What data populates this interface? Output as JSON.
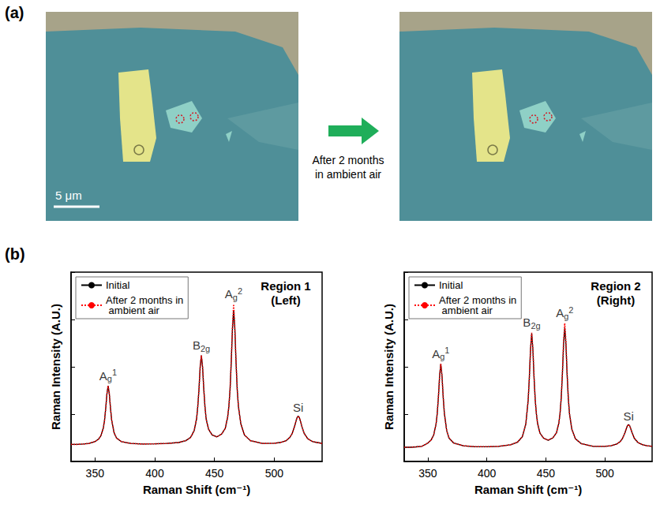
{
  "panel_a": {
    "letter": "(a)",
    "scale_bar": "5 μm",
    "arrow_text": [
      "After 2 months",
      "in ambient air"
    ]
  },
  "panel_b": {
    "letter": "(b)"
  },
  "chart_data": [
    {
      "type": "line",
      "title": [
        "Region 1",
        "(Left)"
      ],
      "x_label": "Raman Shift (cm⁻¹)",
      "y_label": "Raman Intensity (A.U.)",
      "x": [
        330,
        335,
        340,
        345,
        350,
        353,
        355,
        357,
        358,
        359,
        360,
        361,
        362,
        363,
        364,
        366,
        368,
        372,
        380,
        390,
        400,
        410,
        420,
        426,
        430,
        433,
        435,
        436,
        437,
        438,
        439,
        440,
        441,
        442,
        443,
        445,
        448,
        452,
        456,
        459,
        461,
        462,
        463,
        464,
        465,
        466,
        467,
        468,
        469,
        470,
        472,
        475,
        480,
        490,
        500,
        505,
        510,
        513,
        515,
        517,
        518,
        519,
        520,
        521,
        522,
        523,
        525,
        528,
        532,
        536,
        540
      ],
      "series": [
        {
          "name": "Initial",
          "color": "#000000",
          "line_style": "solid",
          "values": [
            0.09,
            0.09,
            0.092,
            0.095,
            0.105,
            0.118,
            0.136,
            0.177,
            0.217,
            0.28,
            0.357,
            0.4,
            0.357,
            0.28,
            0.217,
            0.152,
            0.124,
            0.105,
            0.095,
            0.092,
            0.093,
            0.095,
            0.1,
            0.11,
            0.127,
            0.163,
            0.225,
            0.29,
            0.38,
            0.5,
            0.56,
            0.5,
            0.385,
            0.29,
            0.225,
            0.17,
            0.14,
            0.13,
            0.145,
            0.175,
            0.235,
            0.29,
            0.38,
            0.525,
            0.7,
            0.8,
            0.7,
            0.525,
            0.38,
            0.29,
            0.2,
            0.14,
            0.11,
            0.095,
            0.096,
            0.1,
            0.11,
            0.127,
            0.148,
            0.186,
            0.21,
            0.231,
            0.24,
            0.231,
            0.21,
            0.186,
            0.148,
            0.12,
            0.105,
            0.1,
            0.095
          ]
        },
        {
          "name": "After 2 months in ambient air",
          "color": "#ff0000",
          "line_style": "dotted",
          "values": [
            0.09,
            0.09,
            0.092,
            0.095,
            0.105,
            0.118,
            0.136,
            0.177,
            0.217,
            0.28,
            0.357,
            0.4,
            0.357,
            0.28,
            0.217,
            0.152,
            0.124,
            0.105,
            0.095,
            0.092,
            0.093,
            0.095,
            0.1,
            0.11,
            0.127,
            0.163,
            0.225,
            0.29,
            0.38,
            0.5,
            0.56,
            0.5,
            0.385,
            0.29,
            0.225,
            0.17,
            0.14,
            0.13,
            0.145,
            0.175,
            0.235,
            0.29,
            0.38,
            0.53,
            0.71,
            0.83,
            0.71,
            0.53,
            0.38,
            0.29,
            0.2,
            0.14,
            0.11,
            0.095,
            0.096,
            0.1,
            0.11,
            0.127,
            0.148,
            0.186,
            0.21,
            0.231,
            0.24,
            0.231,
            0.21,
            0.186,
            0.148,
            0.12,
            0.105,
            0.1,
            0.095
          ]
        }
      ],
      "annotations": [
        {
          "x": 361,
          "text": "A",
          "sub": "g",
          "sup": "1"
        },
        {
          "x": 439,
          "text": "B",
          "sub": "2g"
        },
        {
          "x": 466,
          "text": "A",
          "sub": "g",
          "sup": "2"
        },
        {
          "x": 520,
          "text": "Si"
        }
      ],
      "xlim": [
        330,
        540
      ],
      "xticks": [
        350,
        400,
        450,
        500
      ],
      "ylim": [
        0,
        1
      ],
      "yticks": [
        0,
        0.25,
        0.5,
        0.75,
        1
      ],
      "tick_labels": "x",
      "legend": "upper left",
      "grid": false
    },
    {
      "type": "line",
      "title": [
        "Region 2",
        "(Right)"
      ],
      "x_label": "Raman Shift (cm⁻¹)",
      "y_label": "Raman Intensity (A.U.)",
      "x": [
        330,
        335,
        340,
        345,
        350,
        353,
        355,
        357,
        358,
        359,
        360,
        361,
        362,
        363,
        364,
        366,
        368,
        372,
        380,
        390,
        400,
        410,
        420,
        426,
        430,
        433,
        435,
        436,
        437,
        438,
        439,
        440,
        441,
        442,
        443,
        445,
        448,
        452,
        456,
        459,
        461,
        462,
        463,
        464,
        465,
        466,
        467,
        468,
        469,
        470,
        472,
        475,
        480,
        490,
        500,
        505,
        510,
        513,
        515,
        517,
        518,
        519,
        520,
        521,
        522,
        523,
        525,
        528,
        532,
        536,
        540
      ],
      "series": [
        {
          "name": "Initial",
          "color": "#000000",
          "line_style": "solid",
          "values": [
            0.075,
            0.075,
            0.077,
            0.08,
            0.097,
            0.115,
            0.141,
            0.198,
            0.255,
            0.343,
            0.453,
            0.515,
            0.453,
            0.343,
            0.255,
            0.163,
            0.123,
            0.097,
            0.083,
            0.078,
            0.078,
            0.08,
            0.088,
            0.102,
            0.13,
            0.197,
            0.323,
            0.443,
            0.593,
            0.675,
            0.593,
            0.443,
            0.323,
            0.25,
            0.2,
            0.15,
            0.123,
            0.112,
            0.125,
            0.152,
            0.203,
            0.253,
            0.335,
            0.461,
            0.619,
            0.705,
            0.619,
            0.461,
            0.335,
            0.253,
            0.17,
            0.12,
            0.094,
            0.08,
            0.08,
            0.083,
            0.092,
            0.105,
            0.122,
            0.152,
            0.171,
            0.188,
            0.195,
            0.188,
            0.171,
            0.152,
            0.122,
            0.1,
            0.088,
            0.083,
            0.08
          ]
        },
        {
          "name": "After 2 months in ambient air",
          "color": "#ff0000",
          "line_style": "dotted",
          "values": [
            0.075,
            0.075,
            0.077,
            0.08,
            0.097,
            0.115,
            0.141,
            0.198,
            0.255,
            0.343,
            0.453,
            0.515,
            0.453,
            0.343,
            0.255,
            0.163,
            0.123,
            0.097,
            0.083,
            0.078,
            0.078,
            0.08,
            0.088,
            0.102,
            0.13,
            0.197,
            0.323,
            0.443,
            0.593,
            0.68,
            0.593,
            0.443,
            0.323,
            0.25,
            0.2,
            0.15,
            0.123,
            0.112,
            0.125,
            0.152,
            0.203,
            0.253,
            0.335,
            0.465,
            0.635,
            0.73,
            0.635,
            0.465,
            0.335,
            0.253,
            0.17,
            0.12,
            0.094,
            0.08,
            0.08,
            0.083,
            0.092,
            0.105,
            0.122,
            0.152,
            0.171,
            0.188,
            0.195,
            0.188,
            0.171,
            0.152,
            0.122,
            0.1,
            0.088,
            0.083,
            0.08
          ]
        }
      ],
      "annotations": [
        {
          "x": 361,
          "text": "A",
          "sub": "g",
          "sup": "1"
        },
        {
          "x": 438,
          "text": "B",
          "sub": "2g"
        },
        {
          "x": 466,
          "text": "A",
          "sub": "g",
          "sup": "2"
        },
        {
          "x": 520,
          "text": "Si"
        }
      ],
      "xlim": [
        330,
        540
      ],
      "xticks": [
        350,
        400,
        450,
        500
      ],
      "ylim": [
        0,
        1
      ],
      "yticks": [
        0,
        0.25,
        0.5,
        0.75,
        1
      ],
      "tick_labels": "x",
      "legend": "upper left",
      "grid": false
    }
  ]
}
